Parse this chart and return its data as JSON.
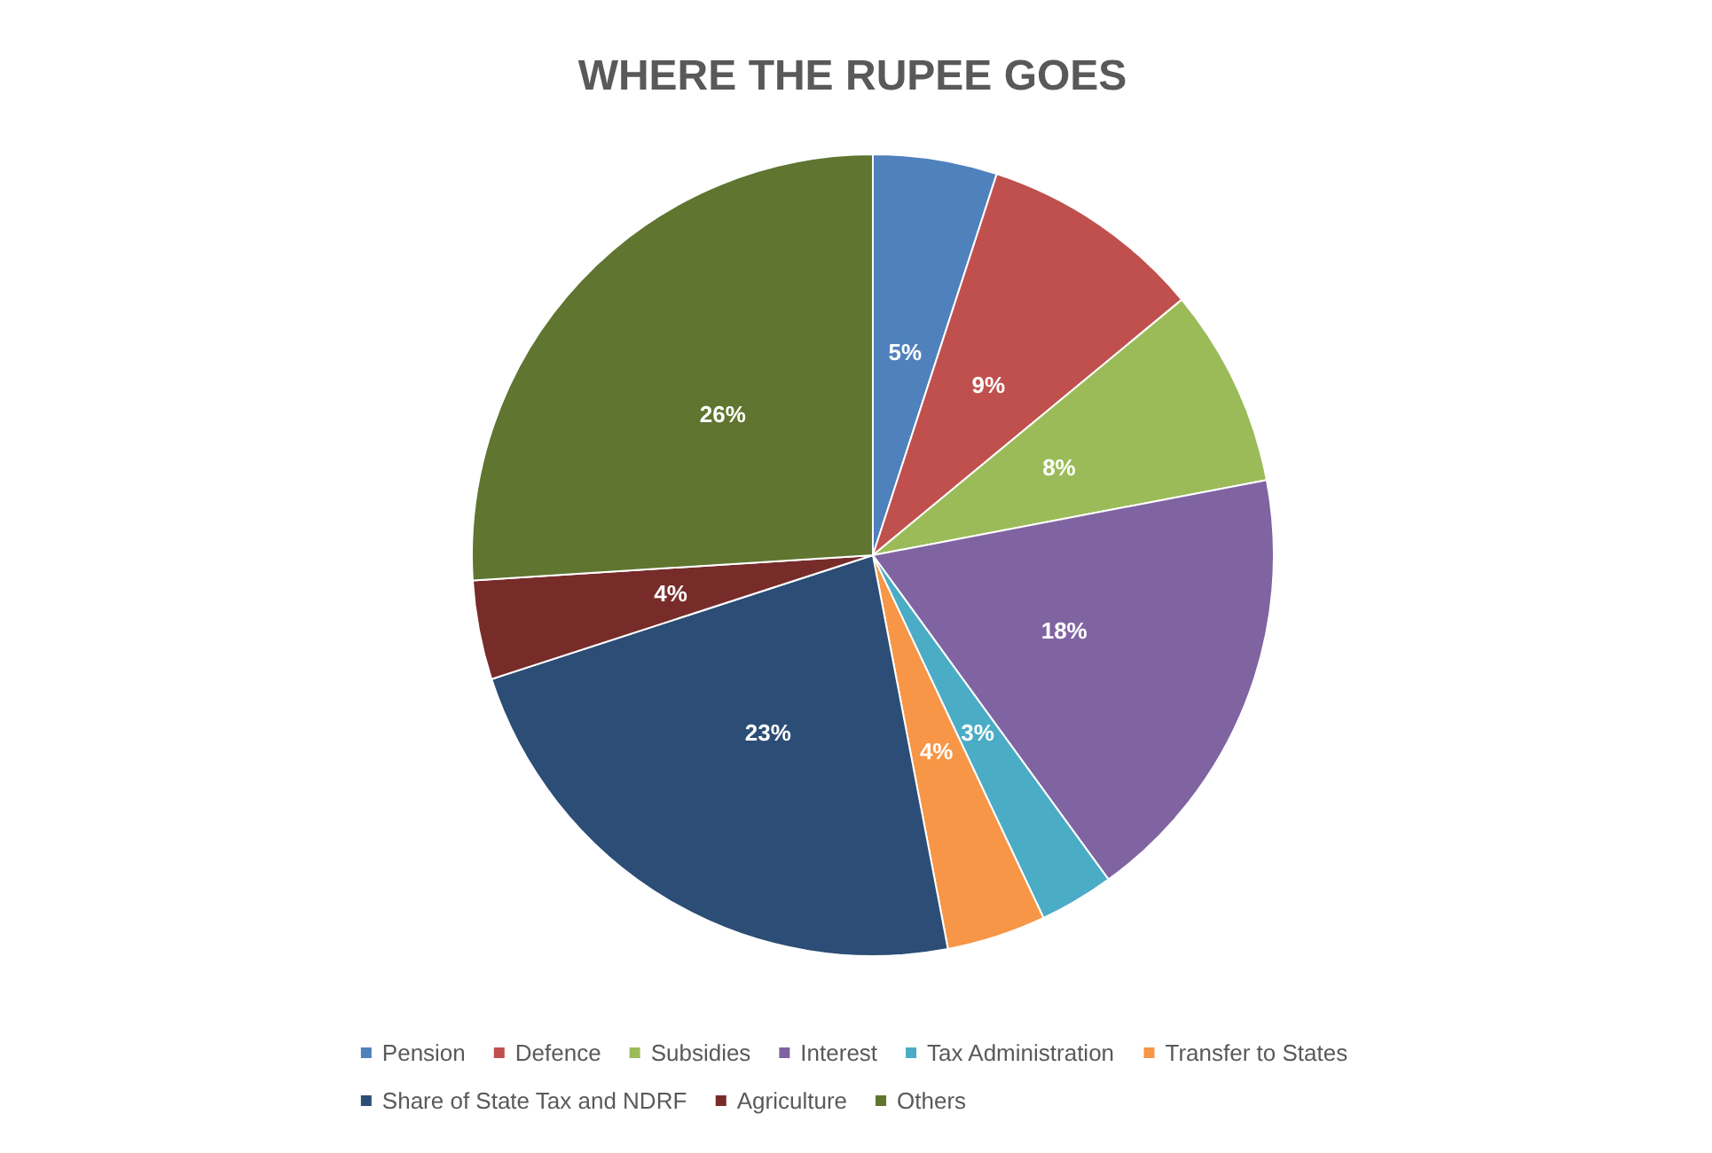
{
  "chart_data": {
    "type": "pie",
    "title": "WHERE THE RUPEE GOES",
    "categories": [
      "Pension",
      "Defence",
      "Subsidies",
      "Interest",
      "Tax Administration",
      "Transfer to States",
      "Share of State Tax and NDRF",
      "Agriculture",
      "Others"
    ],
    "values": [
      5,
      9,
      8,
      18,
      3,
      4,
      23,
      4,
      26
    ],
    "colors": [
      "#4f81bd",
      "#c0504d",
      "#9bbb59",
      "#8064a2",
      "#4bacc6",
      "#f79646",
      "#2c4d75",
      "#772c2a",
      "#5f7530"
    ],
    "value_labels": [
      "5%",
      "9%",
      "8%",
      "18%",
      "3%",
      "4%",
      "23%",
      "4%",
      "26%"
    ],
    "legend": "bottom"
  }
}
